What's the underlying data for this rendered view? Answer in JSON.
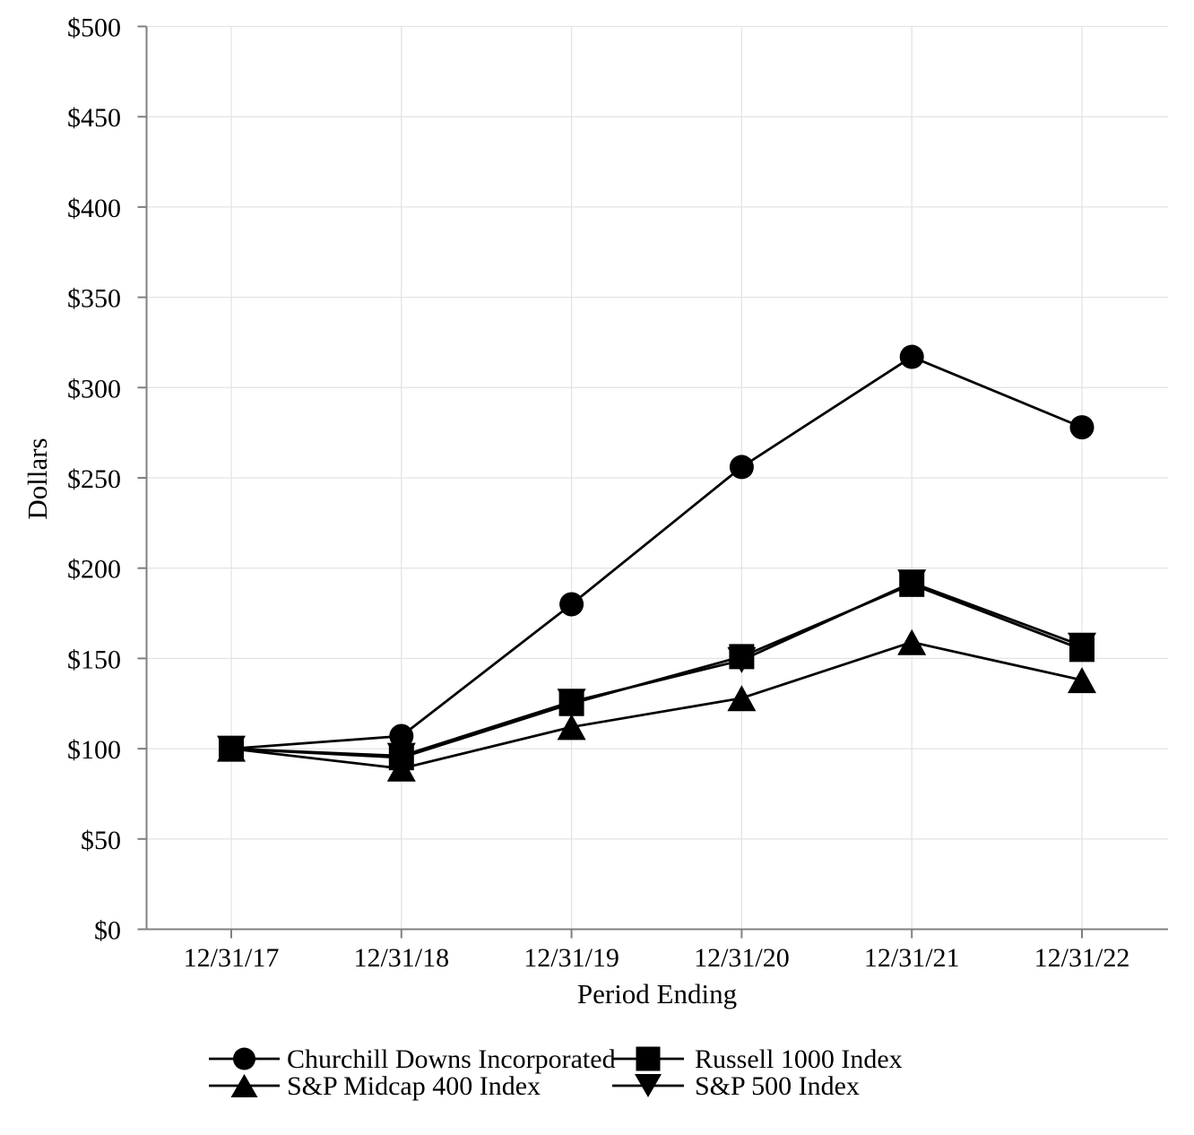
{
  "chart_data": {
    "type": "line",
    "title": "",
    "xlabel": "Period Ending",
    "ylabel": "Dollars",
    "categories": [
      "12/31/17",
      "12/31/18",
      "12/31/19",
      "12/31/20",
      "12/31/21",
      "12/31/22"
    ],
    "series": [
      {
        "name": "Churchill Downs Incorporated",
        "marker": "circle",
        "values": [
          100,
          107,
          180,
          256,
          317,
          278
        ]
      },
      {
        "name": "Russell 1000 Index",
        "marker": "square",
        "values": [
          100,
          95,
          125,
          151,
          191,
          155
        ]
      },
      {
        "name": "S&P Midcap 400 Index",
        "marker": "triangle-up",
        "values": [
          100,
          89,
          112,
          128,
          159,
          138
        ]
      },
      {
        "name": "S&P 500 Index",
        "marker": "triangle-down",
        "values": [
          100,
          96,
          126,
          149,
          192,
          157
        ]
      }
    ],
    "ylim": [
      0,
      500
    ],
    "ytick_step": 50,
    "ytick_labels": [
      "$0",
      "$50",
      "$100",
      "$150",
      "$200",
      "$250",
      "$300",
      "$350",
      "$400",
      "$450",
      "$500"
    ],
    "grid": true,
    "legend_position": "bottom",
    "legend_columns": 2,
    "colors": {
      "series": "#000000",
      "axis": "#808080",
      "gridline": "#e4e4e4",
      "text": "#000000",
      "background": "#ffffff"
    }
  }
}
